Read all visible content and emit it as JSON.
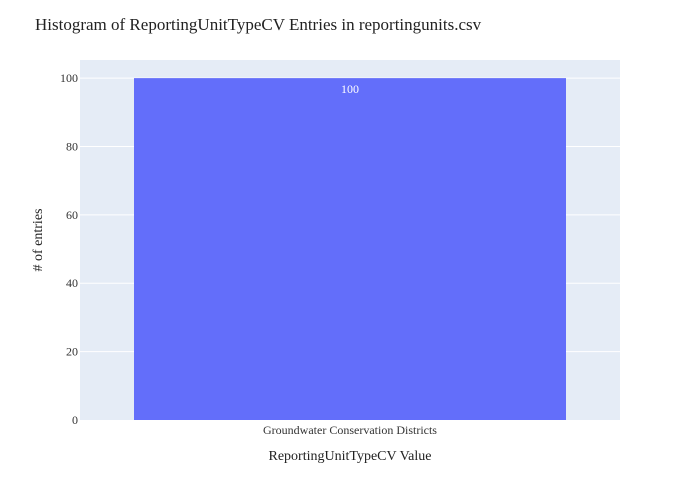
{
  "chart_data": {
    "type": "bar",
    "title": "Histogram of ReportingUnitTypeCV Entries in reportingunits.csv",
    "xlabel": "ReportingUnitTypeCV Value",
    "ylabel": "# of entries",
    "categories": [
      "Groundwater Conservation Districts"
    ],
    "values": [
      100
    ],
    "data_labels": [
      "100"
    ],
    "ylim": [
      0,
      100
    ],
    "yticks": [
      0,
      20,
      40,
      60,
      80,
      100
    ],
    "grid": true,
    "legend": "none",
    "colors": {
      "bar": "#636efa",
      "plot_background": "#e5ecf6",
      "gridline": "#ffffff"
    }
  }
}
